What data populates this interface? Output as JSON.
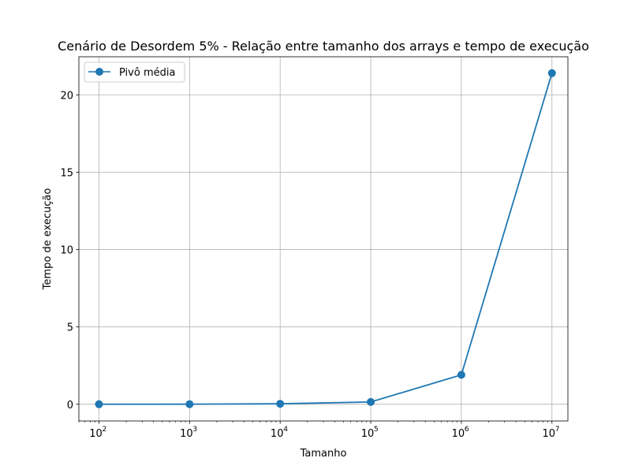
{
  "chart_data": {
    "type": "line",
    "title": "Cenário de Desordem 5% - Relação entre tamanho dos arrays e tempo de execução",
    "xlabel": "Tamanho",
    "ylabel": "Tempo de execução",
    "x_scale": "log",
    "xlim": [
      60,
      15000000
    ],
    "ylim": [
      -1.08,
      22.46
    ],
    "x_ticks": [
      {
        "value": 100,
        "base": "10",
        "exp": "2"
      },
      {
        "value": 1000,
        "base": "10",
        "exp": "3"
      },
      {
        "value": 10000,
        "base": "10",
        "exp": "4"
      },
      {
        "value": 100000,
        "base": "10",
        "exp": "5"
      },
      {
        "value": 1000000,
        "base": "10",
        "exp": "6"
      },
      {
        "value": 10000000,
        "base": "10",
        "exp": "7"
      }
    ],
    "y_ticks": [
      "0",
      "5",
      "10",
      "15",
      "20"
    ],
    "grid": true,
    "legend_location": "upper left",
    "colors": {
      "series": "#1f77b4",
      "grid": "#b0b0b0",
      "axes": "#000000"
    },
    "x": [
      100,
      1000,
      10000,
      100000,
      1000000,
      10000000
    ],
    "series": [
      {
        "name": "Pivô média",
        "values": [
          0.001,
          0.005,
          0.03,
          0.15,
          1.9,
          21.4
        ]
      }
    ]
  }
}
